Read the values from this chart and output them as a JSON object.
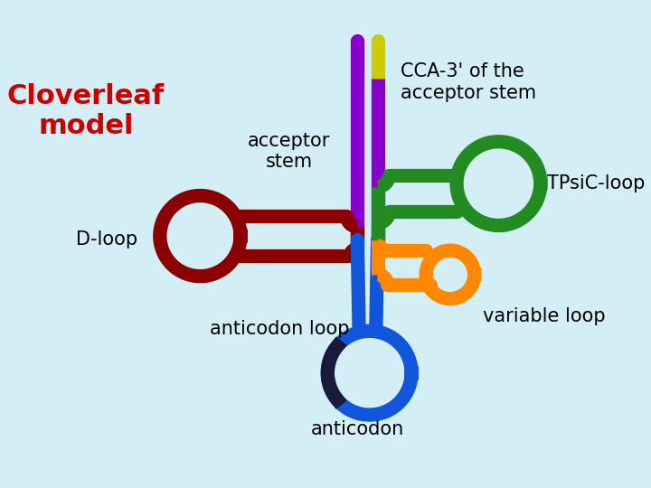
{
  "background_color": "#d4eef5",
  "title_text": "Cloverleaf\nmodel",
  "title_color": "#cc0000",
  "title_fontsize": 22,
  "cca_label": "CCA-3' of the\nacceptor stem",
  "acceptor_label": "acceptor\nstem",
  "tpsic_label": "TPsiC-loop",
  "dloop_label": "D-loop",
  "anticodon_loop_label": "anticodon loop",
  "anticodon_label": "anticodon",
  "variable_label": "variable loop",
  "lw": 11,
  "colors": {
    "purple": "#8800cc",
    "yellow": "#cccc00",
    "dark_red": "#8b0000",
    "green": "#228B22",
    "blue": "#1155dd",
    "orange": "#ff8800",
    "dark_navy": "#1a1a3a"
  }
}
